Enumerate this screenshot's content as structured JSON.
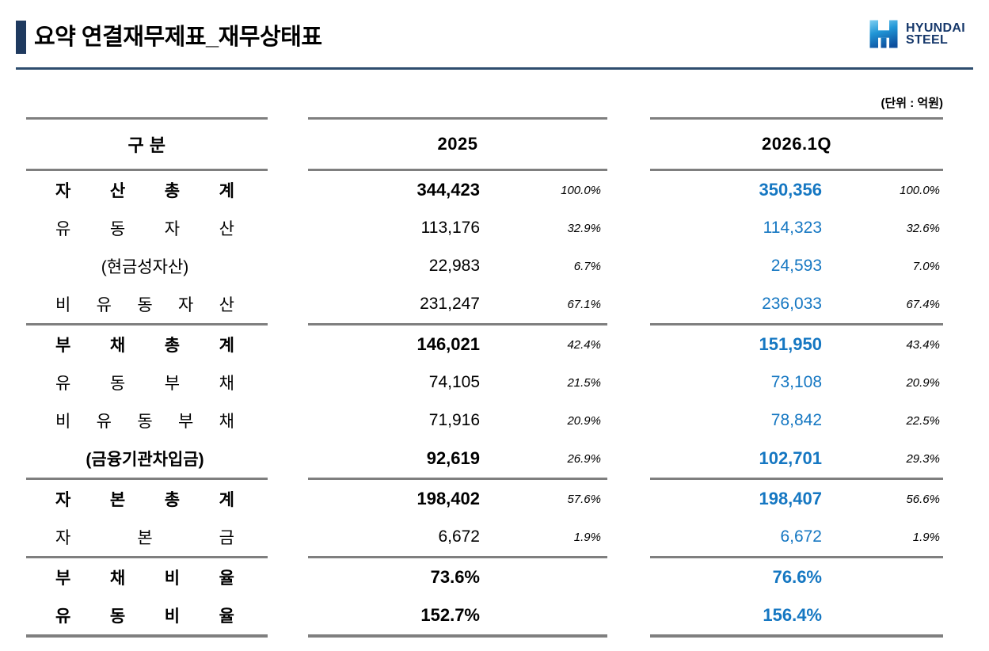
{
  "title": "요약 연결재무제표_재무상태표",
  "logo": {
    "line1": "HYUNDAI",
    "line2": "STEEL"
  },
  "unit_label": "(단위 : 억원)",
  "colors": {
    "accent_blue": "#1577c2",
    "title_navy": "#1f3a5f",
    "rule_navy": "#2e4d6e",
    "line_gray": "#7f7f7f"
  },
  "table": {
    "headers": {
      "category": "구 분",
      "col2025": "2025",
      "col2026": "2026.1Q"
    },
    "sections": [
      {
        "rows": [
          {
            "label": "자 산 총 계",
            "bold": true,
            "justify": true,
            "v2025": "344,423",
            "p2025": "100.0%",
            "v2026": "350,356",
            "p2026": "100.0%"
          },
          {
            "label": "유 동 자 산",
            "bold": false,
            "justify": true,
            "v2025": "113,176",
            "p2025": "32.9%",
            "v2026": "114,323",
            "p2026": "32.6%"
          },
          {
            "label": "(현금성자산)",
            "bold": false,
            "justify": false,
            "v2025": "22,983",
            "p2025": "6.7%",
            "v2026": "24,593",
            "p2026": "7.0%"
          },
          {
            "label": "비 유 동 자 산",
            "bold": false,
            "justify": true,
            "v2025": "231,247",
            "p2025": "67.1%",
            "v2026": "236,033",
            "p2026": "67.4%"
          }
        ]
      },
      {
        "rows": [
          {
            "label": "부 채 총 계",
            "bold": true,
            "justify": true,
            "v2025": "146,021",
            "p2025": "42.4%",
            "v2026": "151,950",
            "p2026": "43.4%"
          },
          {
            "label": "유 동 부 채",
            "bold": false,
            "justify": true,
            "v2025": "74,105",
            "p2025": "21.5%",
            "v2026": "73,108",
            "p2026": "20.9%"
          },
          {
            "label": "비 유 동 부 채",
            "bold": false,
            "justify": true,
            "v2025": "71,916",
            "p2025": "20.9%",
            "v2026": "78,842",
            "p2026": "22.5%"
          },
          {
            "label": "(금융기관차입금)",
            "bold": true,
            "justify": false,
            "v2025": "92,619",
            "p2025": "26.9%",
            "v2026": "102,701",
            "p2026": "29.3%"
          }
        ]
      },
      {
        "rows": [
          {
            "label": "자 본 총 계",
            "bold": true,
            "justify": true,
            "v2025": "198,402",
            "p2025": "57.6%",
            "v2026": "198,407",
            "p2026": "56.6%"
          },
          {
            "label": "자 본 금",
            "bold": false,
            "justify": true,
            "v2025": "6,672",
            "p2025": "1.9%",
            "v2026": "6,672",
            "p2026": "1.9%"
          }
        ]
      },
      {
        "rows": [
          {
            "label": "부 채 비 율",
            "bold": true,
            "justify": true,
            "v2025": "73.6%",
            "p2025": "",
            "v2026": "76.6%",
            "p2026": ""
          },
          {
            "label": "유 동 비 율",
            "bold": true,
            "justify": true,
            "v2025": "152.7%",
            "p2025": "",
            "v2026": "156.4%",
            "p2026": ""
          }
        ]
      }
    ]
  }
}
